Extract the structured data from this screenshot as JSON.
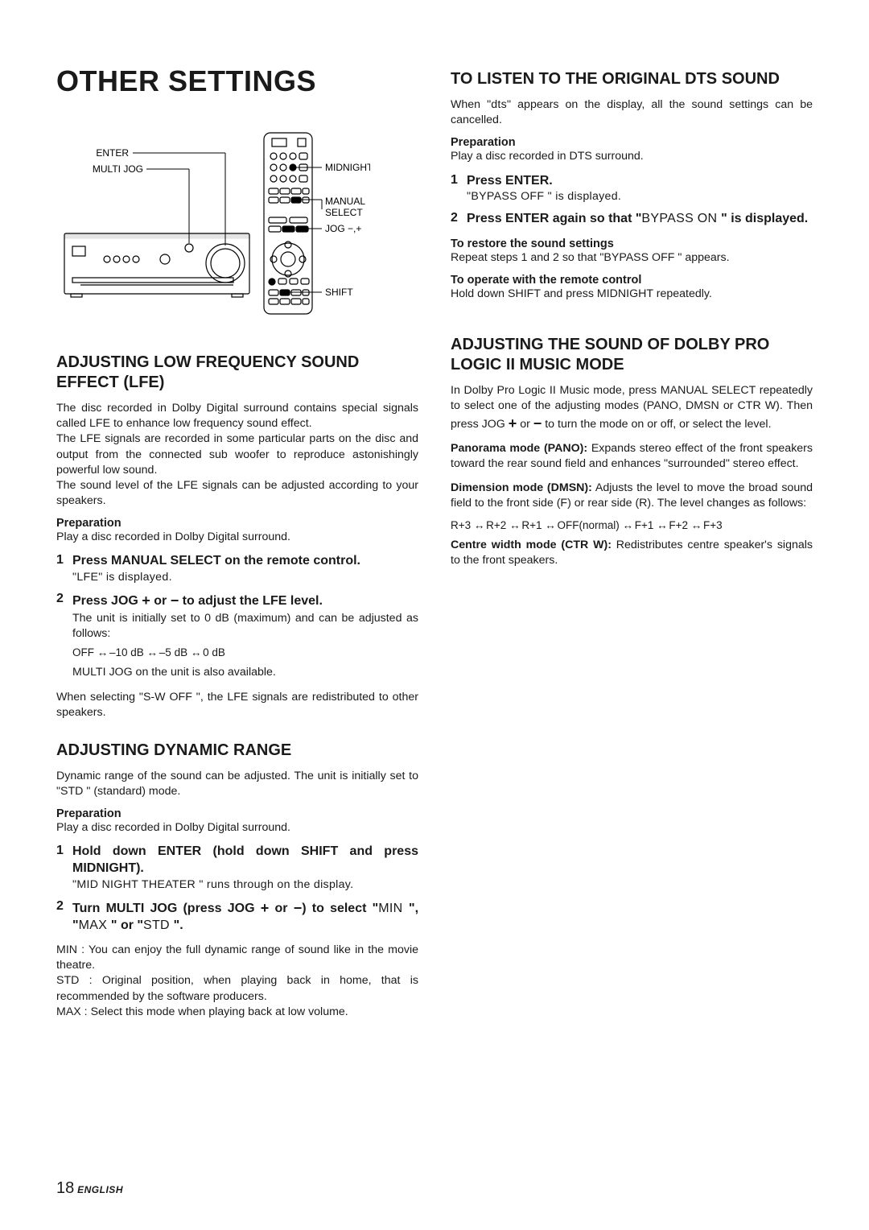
{
  "page": {
    "title": "OTHER SETTINGS",
    "number": "18",
    "language": "ENGLISH"
  },
  "diagram": {
    "left_labels": [
      "ENTER",
      "MULTI JOG"
    ],
    "right_labels": [
      "MIDNIGHT",
      "MANUAL SELECT",
      "JOG −,+",
      "SHIFT"
    ],
    "line_color": "#000000",
    "bg": "#ffffff"
  },
  "left": {
    "lfe": {
      "heading": "ADJUSTING LOW FREQUENCY SOUND EFFECT (LFE)",
      "p1": "The disc recorded in Dolby Digital surround contains special signals called LFE to enhance low frequency sound effect.",
      "p2": "The LFE signals are recorded in some particular parts on the disc and output from the connected sub woofer to reproduce astonishingly powerful low sound.",
      "p3": "The sound level of the LFE signals can be adjusted according to your speakers.",
      "prep_label": "Preparation",
      "prep_text": "Play a disc recorded in Dolby Digital surround.",
      "step1_num": "1",
      "step1_title": "Press MANUAL SELECT on the remote control.",
      "step1_sub": "\"LFE\" is displayed.",
      "step2_num": "2",
      "step2_title_a": "Press JOG ",
      "step2_title_b": " or ",
      "step2_title_c": " to adjust the LFE level.",
      "step2_sub": "The unit is initially set to 0 dB (maximum) and can be adjusted as follows:",
      "seq": [
        "OFF",
        "–10 dB",
        "–5 dB",
        "0 dB"
      ],
      "multijog": "MULTI JOG on the unit is also available.",
      "swoff": "When selecting \"S-W OFF \", the LFE signals are redistributed to other speakers."
    },
    "dyn": {
      "heading": "ADJUSTING DYNAMIC RANGE",
      "p1": "Dynamic range of the sound can be adjusted. The unit is initially set to \"STD \" (standard) mode.",
      "prep_label": "Preparation",
      "prep_text": "Play a disc recorded in Dolby Digital surround.",
      "step1_num": "1",
      "step1_title": "Hold down ENTER (hold down SHIFT and press MIDNIGHT).",
      "step1_sub": "\"MID NIGHT THEATER      \" runs through on the display.",
      "step2_num": "2",
      "step2_title_a": "Turn MULTI JOG (press JOG ",
      "step2_title_b": " or ",
      "step2_title_c": ") to select \"",
      "step2_title_d": "MIN ",
      "step2_title_e": "\", \"",
      "step2_title_f": "MAX ",
      "step2_title_g": "\" or \"",
      "step2_title_h": "STD ",
      "step2_title_i": "\".",
      "min": "MIN  : You can enjoy the full dynamic range of sound like in the movie theatre.",
      "std": "STD : Original position, when playing back in home, that is recommended by the software producers.",
      "max": "MAX  : Select this mode when playing back at low volume."
    }
  },
  "right": {
    "dts": {
      "heading": "TO LISTEN TO THE ORIGINAL DTS SOUND",
      "p1_a": "When \"",
      "p1_b": "dts",
      "p1_c": "\" appears on the display, all the sound settings can be cancelled.",
      "prep_label": "Preparation",
      "prep_text": "Play a disc recorded in DTS surround.",
      "step1_num": "1",
      "step1_title": "Press ENTER.",
      "step1_sub": "\"BYPASS OFF \" is displayed.",
      "step2_num": "2",
      "step2_title_a": "Press ENTER again so that \"",
      "step2_title_b": "BYPASS ON ",
      "step2_title_c": "\" is displayed.",
      "restore_label": "To restore the sound settings",
      "restore_text": "Repeat steps 1 and 2 so that \"BYPASS OFF \" appears.",
      "remote_label": "To operate with the remote control",
      "remote_text": "Hold down SHIFT and press MIDNIGHT repeatedly."
    },
    "pl2": {
      "heading": "ADJUSTING THE SOUND OF DOLBY PRO LOGIC II MUSIC MODE",
      "p1_a": "In Dolby Pro Logic II Music mode, press MANUAL SELECT repeatedly to select one of the adjusting modes (PANO, DMSN or CTR W). Then press JOG ",
      "p1_b": " or ",
      "p1_c": " to turn the mode on or off, or select the level.",
      "pano_label": "Panorama mode (PANO):",
      "pano_text": " Expands stereo effect of the front speakers toward the rear sound field and enhances \"surrounded\" stereo effect.",
      "dmsn_label": "Dimension mode (DMSN):",
      "dmsn_text": " Adjusts the level to move the broad sound field to the front side (F) or rear side (R). The level changes as follows:",
      "seq": [
        "R+3",
        "R+2",
        "R+1",
        "OFF(normal)",
        "F+1",
        "F+2",
        "F+3"
      ],
      "ctrw_label": "Centre width mode (CTR W):",
      "ctrw_text": " Redistributes centre speaker's signals to the front speakers."
    }
  }
}
